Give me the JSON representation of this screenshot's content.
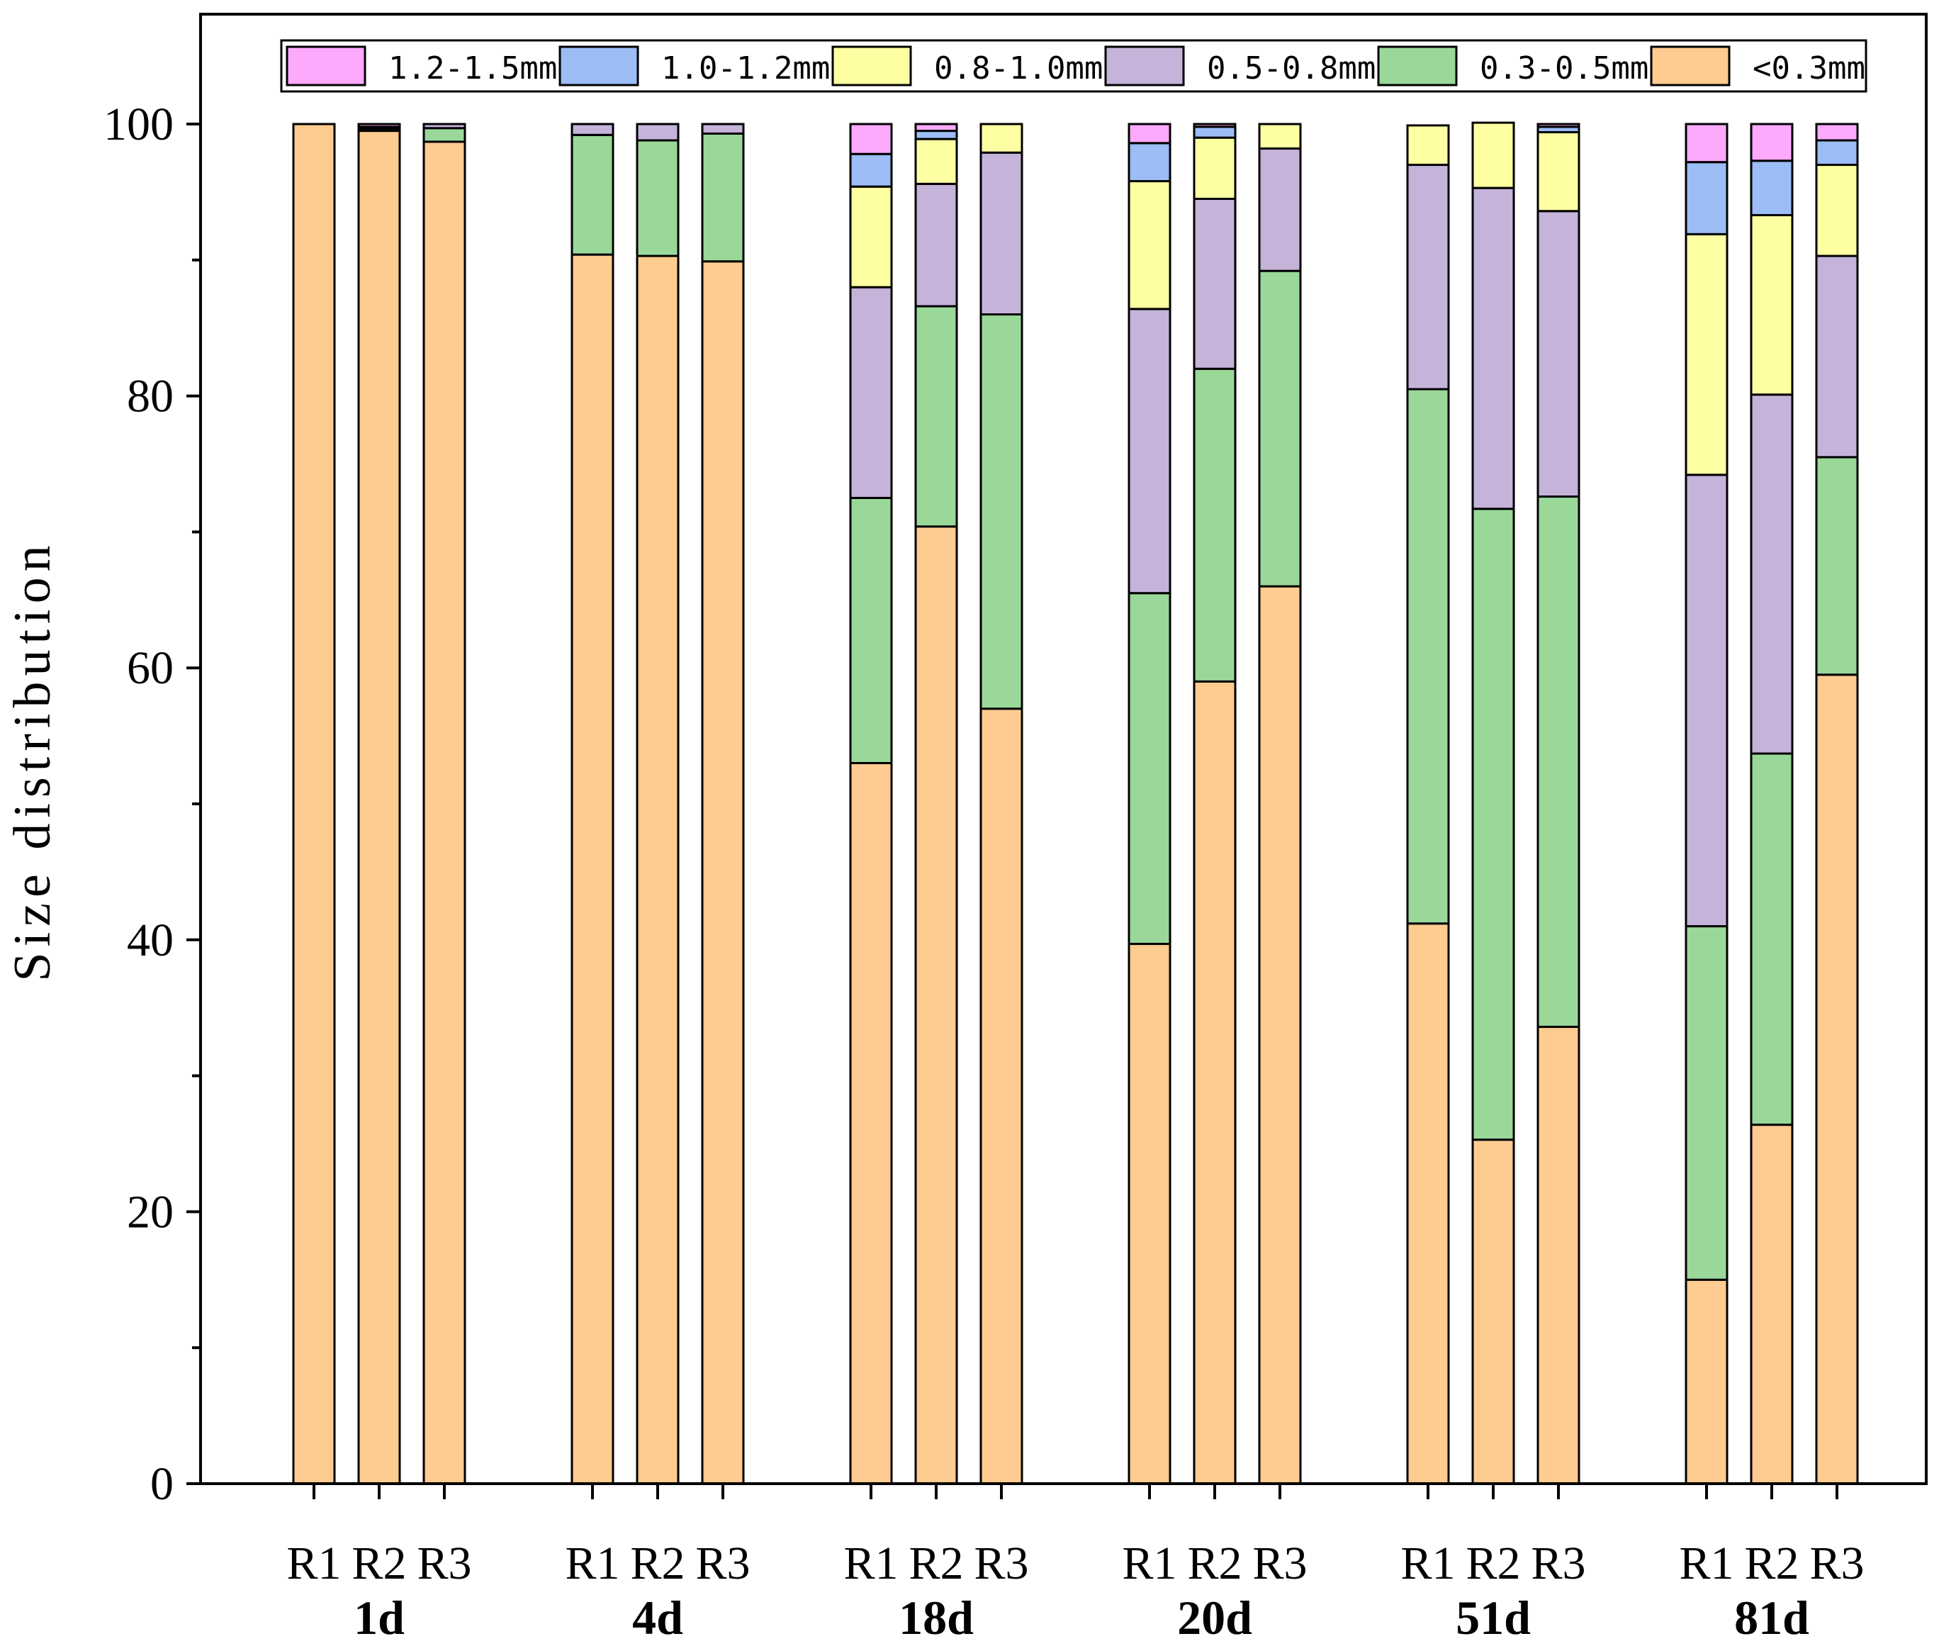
{
  "chart_data": {
    "type": "bar",
    "stacked": true,
    "title": "",
    "xlabel": "",
    "ylabel": "Size distribution",
    "ylim": [
      0,
      100
    ],
    "yticks": [
      0,
      20,
      40,
      60,
      80,
      100
    ],
    "groups": [
      {
        "label": "1d",
        "categories": [
          "R1",
          "R2",
          "R3"
        ]
      },
      {
        "label": "4d",
        "categories": [
          "R1",
          "R2",
          "R3"
        ]
      },
      {
        "label": "18d",
        "categories": [
          "R1",
          "R2",
          "R3"
        ]
      },
      {
        "label": "20d",
        "categories": [
          "R1",
          "R2",
          "R3"
        ]
      },
      {
        "label": "51d",
        "categories": [
          "R1",
          "R2",
          "R3"
        ]
      },
      {
        "label": "81d",
        "categories": [
          "R1",
          "R2",
          "R3"
        ]
      }
    ],
    "legend_position": "top",
    "series": [
      {
        "name": "<0.3mm",
        "color": "#FECB91",
        "values": [
          100,
          99.5,
          98.7,
          90.4,
          90.3,
          89.9,
          53.0,
          70.4,
          57.0,
          39.7,
          59.0,
          66.0,
          41.2,
          25.3,
          33.6,
          15.0,
          26.4,
          59.5
        ]
      },
      {
        "name": "0.3-0.5mm",
        "color": "#9AD89A",
        "values": [
          0,
          0.1,
          1.0,
          8.8,
          8.5,
          9.4,
          19.5,
          16.2,
          29.0,
          25.8,
          23.0,
          23.2,
          39.3,
          46.4,
          39.0,
          26.0,
          27.3,
          16.0
        ]
      },
      {
        "name": "0.5-0.8mm",
        "color": "#C5B3DA",
        "values": [
          0,
          0.1,
          0.3,
          0.8,
          1.2,
          0.7,
          15.5,
          9.0,
          11.9,
          20.9,
          12.5,
          9.0,
          16.5,
          23.6,
          21.0,
          33.2,
          26.4,
          14.8
        ]
      },
      {
        "name": "0.8-1.0mm",
        "color": "#FEFEA2",
        "values": [
          0,
          0,
          0,
          0,
          0,
          0,
          7.4,
          3.3,
          2.1,
          9.4,
          4.5,
          1.8,
          2.9,
          4.8,
          5.8,
          17.7,
          13.2,
          6.7
        ]
      },
      {
        "name": "1.0-1.2mm",
        "color": "#9CBDF5",
        "values": [
          0,
          0.1,
          0,
          0,
          0,
          0,
          2.4,
          0.6,
          0,
          2.8,
          0.8,
          0,
          0,
          0,
          0.4,
          5.3,
          4.0,
          1.8
        ]
      },
      {
        "name": "1.2-1.5mm",
        "color": "#FDAAFD",
        "values": [
          0,
          0.2,
          0,
          0,
          0,
          0,
          2.2,
          0.5,
          0,
          1.4,
          0.2,
          0,
          0,
          0,
          0.2,
          2.8,
          2.7,
          1.2
        ]
      }
    ]
  },
  "legend": {
    "labels": [
      "1.2-1.5mm",
      "1.0-1.2mm",
      "0.8-1.0mm",
      "0.5-0.8mm",
      "0.3-0.5mm",
      "<0.3mm"
    ],
    "display_text": [
      "1.2-1.5mm",
      "1.0-1.2mm",
      "0.8-1.0mm",
      "0.5-0.8mm",
      "0.3-0.5mm",
      "<0.3mm"
    ]
  }
}
